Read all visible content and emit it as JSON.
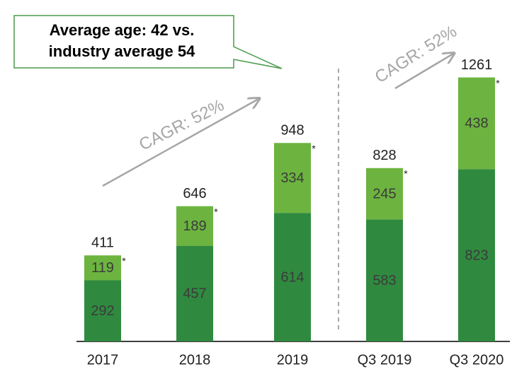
{
  "chart_data": {
    "type": "stacked_bar",
    "callout": [
      "Average age: 42 vs.",
      "industry average 54"
    ],
    "annotations": [
      "CAGR: 52%",
      "CAGR: 52%"
    ],
    "categories": [
      "2017",
      "2018",
      "2019",
      "Q3 2019",
      "Q3 2020"
    ],
    "series": [
      {
        "color": "#2f8a3f",
        "values": [
          292,
          457,
          614,
          583,
          823
        ]
      },
      {
        "color": "#6cb43f",
        "values": [
          119,
          189,
          334,
          245,
          438
        ]
      }
    ],
    "totals": [
      411,
      646,
      948,
      828,
      1261
    ],
    "segment_marker": "*",
    "ylim": [
      0,
      1300
    ]
  }
}
